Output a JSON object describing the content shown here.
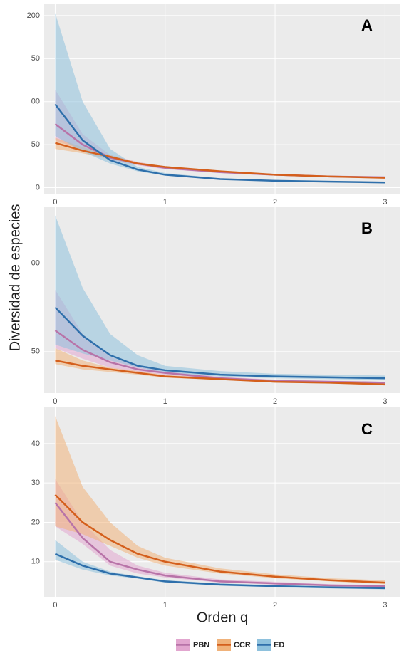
{
  "ylabel": "Diversidad de especies",
  "xlabel": "Orden q",
  "legend": [
    {
      "name": "PBN",
      "color": "#b873a8",
      "fill": "#e2a6cf"
    },
    {
      "name": "CCR",
      "color": "#d45f1c",
      "fill": "#f0b27a"
    },
    {
      "name": "ED",
      "color": "#2e6fab",
      "fill": "#8ec1dd"
    }
  ],
  "chart_data": [
    {
      "type": "line",
      "label": "A",
      "x": [
        0,
        0.25,
        0.5,
        0.75,
        1,
        1.5,
        2,
        2.5,
        3
      ],
      "xlim": [
        -0.1,
        3.14
      ],
      "xticks": [
        0,
        1,
        2,
        3
      ],
      "ylim": [
        -7,
        214
      ],
      "yticks": [
        0,
        {
          "value": 50,
          "label": "50"
        },
        {
          "value": 100,
          "label": "00"
        },
        {
          "value": 150,
          "label": "50"
        },
        200
      ],
      "grid": true,
      "series": [
        {
          "values": [
            74,
            50,
            35,
            28,
            23,
            18,
            15,
            13,
            12
          ],
          "lower": [
            55,
            44,
            32,
            26,
            21.5,
            17,
            14,
            12.2,
            11
          ],
          "upper": [
            114,
            62,
            38,
            30,
            24.5,
            19,
            16,
            13.8,
            12.8
          ]
        },
        {
          "values": [
            52,
            43,
            36,
            28,
            24,
            19,
            15,
            13,
            11.5
          ],
          "lower": [
            45,
            40,
            33,
            27,
            23,
            18,
            14.3,
            12.3,
            10.8
          ],
          "upper": [
            58,
            47,
            38,
            29.5,
            25,
            20,
            15.8,
            13.7,
            12.2
          ]
        },
        {
          "values": [
            97,
            55,
            32,
            21,
            15,
            10,
            8,
            7,
            6
          ],
          "lower": [
            60,
            42,
            28,
            19,
            14,
            9.3,
            7.4,
            6.5,
            5.5
          ],
          "upper": [
            203,
            100,
            45,
            24,
            17,
            11,
            8.6,
            7.5,
            6.6
          ]
        }
      ]
    },
    {
      "type": "line",
      "label": "B",
      "x": [
        0,
        0.25,
        0.5,
        0.75,
        1,
        1.5,
        2,
        2.5,
        3
      ],
      "xlim": [
        -0.1,
        3.14
      ],
      "xticks": [
        0,
        1,
        2,
        3
      ],
      "ylim": [
        26.6,
        132
      ],
      "yticks": [
        50,
        {
          "value": 100,
          "label": "00"
        }
      ],
      "grid": true,
      "series": [
        {
          "values": [
            62,
            51,
            44,
            40,
            38,
            35,
            33.5,
            33,
            32.5
          ],
          "lower": [
            52,
            46,
            41,
            38.5,
            37,
            34.3,
            33,
            32.5,
            32
          ],
          "upper": [
            85,
            60,
            47,
            42,
            39,
            35.8,
            34.2,
            33.6,
            33
          ]
        },
        {
          "values": [
            45,
            42,
            40,
            38,
            36,
            34.5,
            33,
            32.5,
            31.5
          ],
          "lower": [
            43,
            40,
            38.5,
            37,
            35.3,
            34,
            32.5,
            32,
            31
          ],
          "upper": [
            52,
            45,
            41,
            39,
            36.8,
            35.2,
            33.6,
            33,
            32.2
          ]
        },
        {
          "values": [
            75,
            59,
            48,
            42,
            39.5,
            37,
            36,
            35.5,
            35
          ],
          "lower": [
            54,
            49,
            45,
            41,
            38,
            36,
            35,
            34.5,
            34
          ],
          "upper": [
            127,
            86,
            60,
            48,
            42,
            39,
            37.5,
            37,
            36.5
          ]
        }
      ]
    },
    {
      "type": "line",
      "label": "C",
      "x": [
        0,
        0.25,
        0.5,
        0.75,
        1,
        1.5,
        2,
        2.5,
        3
      ],
      "xlim": [
        -0.1,
        3.14
      ],
      "xticks": [
        0,
        1,
        2,
        3
      ],
      "ylim": [
        1.1,
        49.2
      ],
      "yticks": [
        10,
        20,
        30,
        40
      ],
      "grid": true,
      "series": [
        {
          "values": [
            25,
            16,
            10,
            8,
            6.5,
            5,
            4.5,
            4,
            3.8
          ],
          "lower": [
            19,
            14.5,
            9,
            7,
            6,
            4.7,
            4.2,
            3.8,
            3.5
          ],
          "upper": [
            31,
            20,
            13,
            9,
            7.2,
            5.5,
            4.9,
            4.3,
            4.1
          ]
        },
        {
          "values": [
            27,
            20,
            15.5,
            12,
            10,
            7.5,
            6.2,
            5.3,
            4.7
          ],
          "lower": [
            19,
            17,
            14,
            11,
            9,
            7,
            5.8,
            5,
            4.3
          ],
          "upper": [
            47,
            29,
            20,
            14,
            11,
            8.3,
            6.8,
            5.8,
            5.3
          ]
        },
        {
          "values": [
            12,
            9,
            7,
            6,
            5,
            4.2,
            3.8,
            3.5,
            3.3
          ],
          "lower": [
            10.5,
            8,
            6.5,
            5.7,
            4.7,
            3.9,
            3.5,
            3.2,
            3
          ],
          "upper": [
            15.5,
            10,
            7.5,
            6.3,
            5.3,
            4.5,
            4.1,
            3.8,
            3.6
          ]
        }
      ]
    }
  ]
}
